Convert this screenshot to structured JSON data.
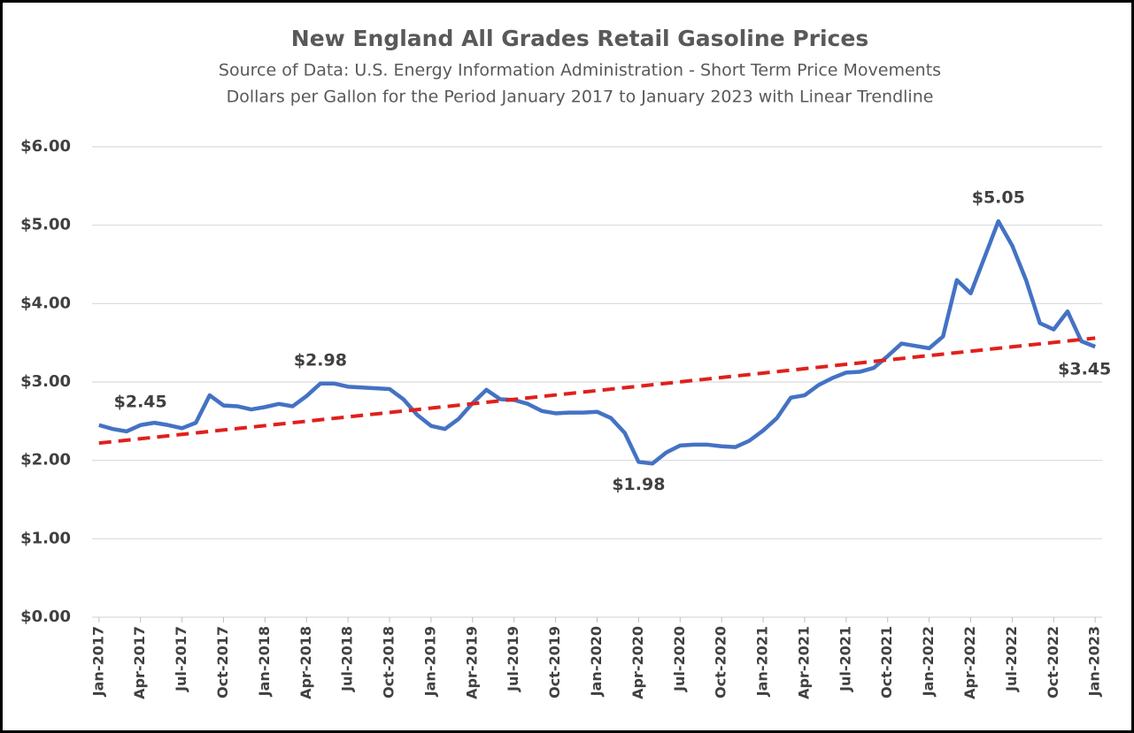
{
  "chart_data": {
    "type": "line",
    "title": "New England All Grades Retail Gasoline Prices",
    "subtitle": [
      "Source of Data:  U.S. Energy Information Administration - Short Term Price Movements",
      "Dollars per Gallon for the Period January 2017 to January 2023 with Linear Trendline"
    ],
    "categories": [
      "Jan-2017",
      null,
      null,
      "Apr-2017",
      null,
      null,
      "Jul-2017",
      null,
      null,
      "Oct-2017",
      null,
      null,
      "Jan-2018",
      null,
      null,
      "Apr-2018",
      null,
      null,
      "Jul-2018",
      null,
      null,
      "Oct-2018",
      null,
      null,
      "Jan-2019",
      null,
      null,
      "Apr-2019",
      null,
      null,
      "Jul-2019",
      null,
      null,
      "Oct-2019",
      null,
      null,
      "Jan-2020",
      null,
      null,
      "Apr-2020",
      null,
      null,
      "Jul-2020",
      null,
      null,
      "Oct-2020",
      null,
      null,
      "Jan-2021",
      null,
      null,
      "Apr-2021",
      null,
      null,
      "Jul-2021",
      null,
      null,
      "Oct-2021",
      null,
      null,
      "Jan-2022",
      null,
      null,
      "Apr-2022",
      null,
      null,
      "Jul-2022",
      null,
      null,
      "Oct-2022",
      null,
      null,
      "Jan-2023"
    ],
    "series": [
      {
        "color": "#4472c4",
        "values": [
          2.45,
          2.4,
          2.37,
          2.45,
          2.48,
          2.45,
          2.41,
          2.48,
          2.83,
          2.7,
          2.69,
          2.65,
          2.68,
          2.72,
          2.69,
          2.82,
          2.98,
          2.98,
          2.94,
          2.93,
          2.92,
          2.91,
          2.78,
          2.58,
          2.44,
          2.4,
          2.53,
          2.73,
          2.9,
          2.78,
          2.77,
          2.72,
          2.63,
          2.6,
          2.61,
          2.61,
          2.62,
          2.54,
          2.35,
          1.98,
          1.96,
          2.1,
          2.19,
          2.2,
          2.2,
          2.18,
          2.17,
          2.25,
          2.38,
          2.54,
          2.8,
          2.83,
          2.96,
          3.05,
          3.12,
          3.13,
          3.18,
          3.33,
          3.49,
          3.46,
          3.43,
          3.58,
          4.3,
          4.13,
          4.59,
          5.05,
          4.74,
          4.3,
          3.75,
          3.67,
          3.9,
          3.52,
          3.45
        ]
      }
    ],
    "trendline": {
      "color": "#e0201c",
      "values": [
        2.22,
        3.56
      ]
    },
    "annotations": [
      {
        "index": 3,
        "label": "$2.45",
        "position": "above"
      },
      {
        "index": 16,
        "label": "$2.98",
        "position": "above"
      },
      {
        "index": 39,
        "label": "$1.98",
        "position": "below"
      },
      {
        "index": 65,
        "label": "$5.05",
        "position": "above"
      },
      {
        "index": 72,
        "label": "$3.45",
        "position": "below"
      }
    ],
    "ylim": [
      0,
      6
    ],
    "yticks": [
      {
        "value": 0,
        "label": "$0.00"
      },
      {
        "value": 1,
        "label": "$1.00"
      },
      {
        "value": 2,
        "label": "$2.00"
      },
      {
        "value": 3,
        "label": "$3.00"
      },
      {
        "value": 4,
        "label": "$4.00"
      },
      {
        "value": 5,
        "label": "$5.00"
      },
      {
        "value": 6,
        "label": "$6.00"
      }
    ],
    "grid": true
  }
}
